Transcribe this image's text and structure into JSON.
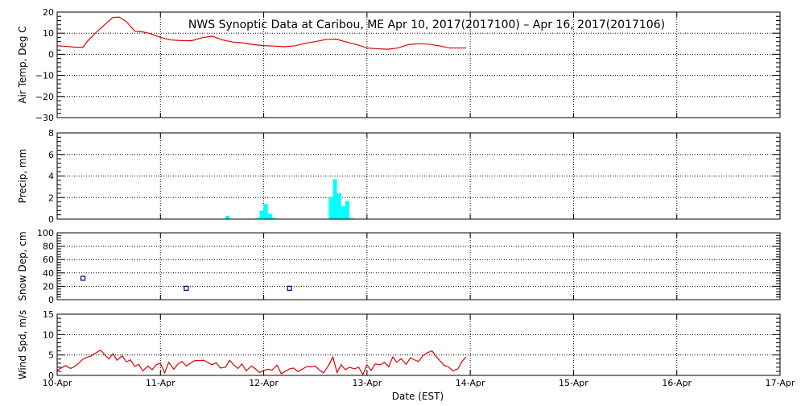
{
  "title": "NWS Synoptic Data at Caribou, ME   Apr 10, 2017(2017100) – Apr 16, 2017(2017106)",
  "colors": {
    "air_temp": "#dd0000",
    "precip": "#00ffff",
    "snow_depth": "#000080",
    "wind_speed": "#dd0000",
    "grid": "#000000"
  },
  "chart_data": {
    "type": "multi-panel time series",
    "xlabel": "Date (EST)",
    "x_tick_labels": [
      "10-Apr",
      "11-Apr",
      "12-Apr",
      "13-Apr",
      "14-Apr",
      "15-Apr",
      "16-Apr",
      "17-Apr"
    ],
    "x_range_days": [
      0,
      7
    ],
    "x_units": "days since Apr 10, 2017 00:00 EST",
    "panels": [
      {
        "id": "air_temp",
        "type": "line",
        "ylabel": "Air Temp, Deg C",
        "ylim": [
          -30,
          20
        ],
        "yticks": [
          -30,
          -20,
          -10,
          0,
          10,
          20
        ],
        "y_tick_labels": [
          "−30",
          "−20",
          "−10",
          "0",
          "10",
          "20"
        ],
        "grid": true,
        "x": [
          0,
          0.08,
          0.16,
          0.25,
          0.29,
          0.38,
          0.46,
          0.54,
          0.6,
          0.67,
          0.75,
          0.83,
          0.9,
          1.0,
          1.1,
          1.2,
          1.3,
          1.4,
          1.5,
          1.6,
          1.7,
          1.8,
          1.9,
          2.0,
          2.1,
          2.2,
          2.3,
          2.4,
          2.5,
          2.6,
          2.7,
          2.8,
          2.9,
          3.0,
          3.1,
          3.2,
          3.3,
          3.4,
          3.5,
          3.6,
          3.7,
          3.8,
          3.96
        ],
        "y": [
          4,
          3.8,
          3.4,
          3.3,
          6,
          10.5,
          14,
          17.5,
          17.6,
          15.5,
          11,
          10.6,
          9.8,
          8,
          6.8,
          6.5,
          6.4,
          7.8,
          8.6,
          6.8,
          5.8,
          5.4,
          4.6,
          4.1,
          3.9,
          3.6,
          4.0,
          5.2,
          6.0,
          7.0,
          7.2,
          5.8,
          4.6,
          3.0,
          2.6,
          2.4,
          3.0,
          4.6,
          5.0,
          4.8,
          4.0,
          3.0,
          3.0
        ],
        "series_color_key": "air_temp"
      },
      {
        "id": "precip",
        "type": "bar",
        "ylabel": "Precip, mm",
        "ylim": [
          0,
          8
        ],
        "yticks": [
          0,
          2,
          4,
          6,
          8
        ],
        "y_tick_labels": [
          "0",
          "2",
          "4",
          "6",
          "8"
        ],
        "grid": true,
        "bar_width_days": 0.04,
        "bars": [
          {
            "x": 1.63,
            "value": 0.3
          },
          {
            "x": 1.92,
            "value": 0.1
          },
          {
            "x": 1.96,
            "value": 0.8
          },
          {
            "x": 2.0,
            "value": 1.4
          },
          {
            "x": 2.04,
            "value": 0.5
          },
          {
            "x": 2.08,
            "value": 0.1
          },
          {
            "x": 2.63,
            "value": 2.0
          },
          {
            "x": 2.67,
            "value": 3.7
          },
          {
            "x": 2.71,
            "value": 2.4
          },
          {
            "x": 2.75,
            "value": 1.2
          },
          {
            "x": 2.79,
            "value": 1.7
          },
          {
            "x": 2.83,
            "value": 0.1
          }
        ],
        "series_color_key": "precip"
      },
      {
        "id": "snow_depth",
        "type": "scatter",
        "ylabel": "Snow Dep, cm",
        "ylim": [
          0,
          100
        ],
        "yticks": [
          0,
          20,
          40,
          60,
          80,
          100
        ],
        "y_tick_labels": [
          "0",
          "20",
          "40",
          "60",
          "80",
          "100"
        ],
        "grid": true,
        "points": [
          {
            "x": 0.25,
            "y": 32
          },
          {
            "x": 1.25,
            "y": 17
          },
          {
            "x": 2.25,
            "y": 17
          }
        ],
        "series_color_key": "snow_depth"
      },
      {
        "id": "wind_speed",
        "type": "line",
        "ylabel": "Wind Spd, m/s",
        "ylim": [
          0,
          15
        ],
        "yticks": [
          0,
          5,
          10,
          15
        ],
        "y_tick_labels": [
          "0",
          "5",
          "10",
          "15"
        ],
        "grid": true,
        "x": [
          0,
          0.08,
          0.13,
          0.17,
          0.21,
          0.25,
          0.33,
          0.42,
          0.5,
          0.54,
          0.58,
          0.63,
          0.67,
          0.71,
          0.75,
          0.79,
          0.83,
          0.88,
          0.92,
          0.96,
          1.0,
          1.04,
          1.08,
          1.13,
          1.17,
          1.21,
          1.25,
          1.33,
          1.42,
          1.5,
          1.54,
          1.58,
          1.63,
          1.67,
          1.71,
          1.75,
          1.79,
          1.83,
          1.88,
          1.92,
          1.96,
          2.0,
          2.04,
          2.08,
          2.13,
          2.17,
          2.21,
          2.25,
          2.29,
          2.33,
          2.38,
          2.42,
          2.46,
          2.5,
          2.54,
          2.58,
          2.63,
          2.67,
          2.71,
          2.75,
          2.79,
          2.83,
          2.88,
          2.92,
          2.96,
          3.0,
          3.04,
          3.08,
          3.13,
          3.17,
          3.21,
          3.25,
          3.29,
          3.33,
          3.38,
          3.42,
          3.46,
          3.5,
          3.54,
          3.58,
          3.63,
          3.67,
          3.71,
          3.75,
          3.79,
          3.83,
          3.88,
          3.92,
          3.96
        ],
        "y": [
          1.2,
          2.4,
          1.7,
          2.2,
          3.0,
          4.0,
          4.8,
          6.2,
          4.0,
          5.3,
          3.7,
          4.8,
          3.3,
          3.8,
          2.2,
          2.7,
          1.1,
          2.3,
          1.4,
          2.6,
          3.0,
          0.6,
          3.2,
          1.5,
          2.8,
          3.4,
          2.3,
          3.6,
          3.7,
          2.6,
          3.1,
          1.8,
          2.0,
          3.7,
          2.6,
          1.7,
          2.8,
          1.1,
          2.3,
          1.6,
          0.7,
          1.2,
          1.5,
          1.3,
          2.5,
          0.4,
          1.0,
          1.6,
          1.8,
          0.9,
          1.6,
          2.2,
          2.1,
          2.3,
          1.3,
          0.6,
          2.5,
          4.5,
          0.7,
          2.6,
          1.4,
          2.0,
          1.6,
          2.0,
          0.2,
          2.6,
          1.2,
          2.8,
          2.6,
          3.2,
          2.1,
          4.5,
          3.2,
          4.1,
          2.7,
          4.3,
          3.8,
          3.4,
          4.8,
          5.5,
          6.0,
          4.6,
          3.5,
          2.4,
          2.1,
          1.1,
          1.6,
          3.4,
          4.5
        ],
        "series_color_key": "wind_speed"
      }
    ]
  }
}
